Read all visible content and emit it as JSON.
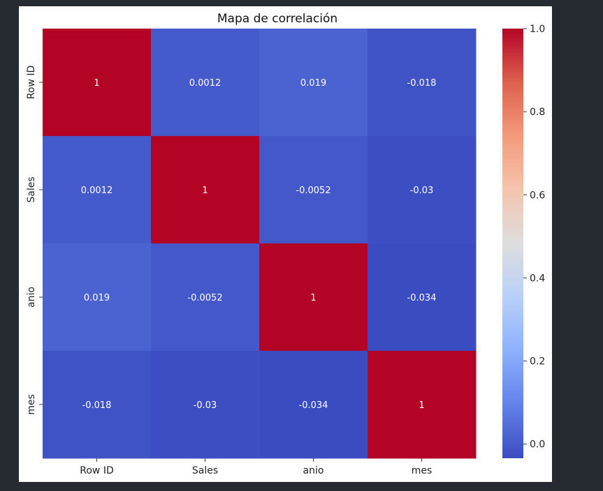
{
  "chart_data": {
    "type": "heatmap",
    "title": "Mapa de correlación",
    "xlabel": "",
    "ylabel": "",
    "x_labels": [
      "Row ID",
      "Sales",
      "anio",
      "mes"
    ],
    "y_labels": [
      "Row ID",
      "Sales",
      "anio",
      "mes"
    ],
    "values": [
      [
        1,
        0.0012,
        0.019,
        -0.018
      ],
      [
        0.0012,
        1,
        -0.0052,
        -0.03
      ],
      [
        0.019,
        -0.0052,
        1,
        -0.034
      ],
      [
        -0.018,
        -0.03,
        -0.034,
        1
      ]
    ],
    "cell_labels": [
      [
        "1",
        "0.0012",
        "0.019",
        "-0.018"
      ],
      [
        "0.0012",
        "1",
        "-0.0052",
        "-0.03"
      ],
      [
        "0.019",
        "-0.0052",
        "1",
        "-0.034"
      ],
      [
        "-0.018",
        "-0.03",
        "-0.034",
        "1"
      ]
    ],
    "colormap": "coolwarm",
    "colorbar": {
      "range": [
        -0.034,
        1.0
      ],
      "ticks": [
        0.0,
        0.2,
        0.4,
        0.6,
        0.8,
        1.0
      ],
      "tick_labels": [
        "0.0",
        "0.2",
        "0.4",
        "0.6",
        "0.8",
        "1.0"
      ]
    }
  }
}
